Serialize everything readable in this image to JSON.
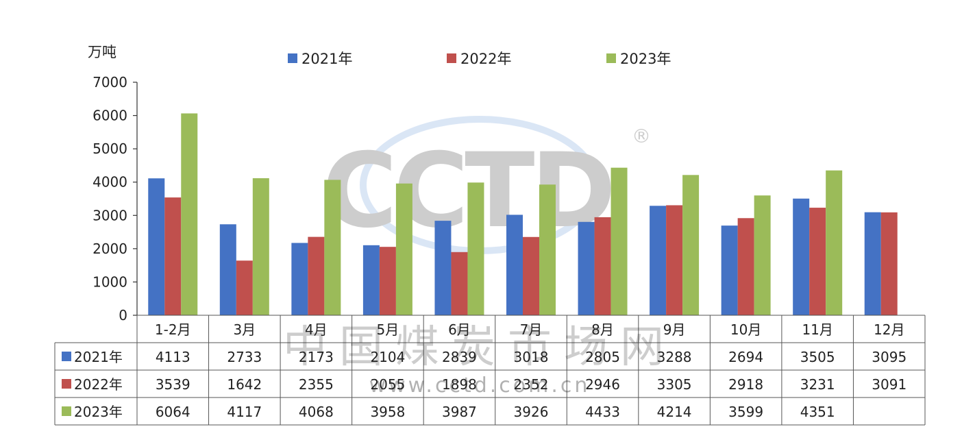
{
  "chart_data": {
    "type": "bar",
    "ylabel": "万吨",
    "ylim": [
      0,
      7000
    ],
    "yticks": [
      0,
      1000,
      2000,
      3000,
      4000,
      5000,
      6000,
      7000
    ],
    "categories": [
      "1-2月",
      "3月",
      "4月",
      "5月",
      "6月",
      "7月",
      "8月",
      "9月",
      "10月",
      "11月",
      "12月"
    ],
    "series": [
      {
        "name": "2021年",
        "color": "#4472C4",
        "values": [
          4113,
          2733,
          2173,
          2104,
          2839,
          3018,
          2805,
          3288,
          2694,
          3505,
          3095
        ]
      },
      {
        "name": "2022年",
        "color": "#C0504D",
        "values": [
          3539,
          1642,
          2355,
          2055,
          1898,
          2352,
          2946,
          3305,
          2918,
          3231,
          3091
        ]
      },
      {
        "name": "2023年",
        "color": "#9BBB59",
        "values": [
          6064,
          4117,
          4068,
          3958,
          3987,
          3926,
          4433,
          4214,
          3599,
          4351,
          null
        ]
      }
    ],
    "legend_position": "top",
    "grid": false,
    "data_table": true
  },
  "watermark": {
    "logo_text": "CCTD",
    "cn_text": "中国煤炭市场网",
    "url_text": "www.cctd.com.cn",
    "registered": "®"
  }
}
